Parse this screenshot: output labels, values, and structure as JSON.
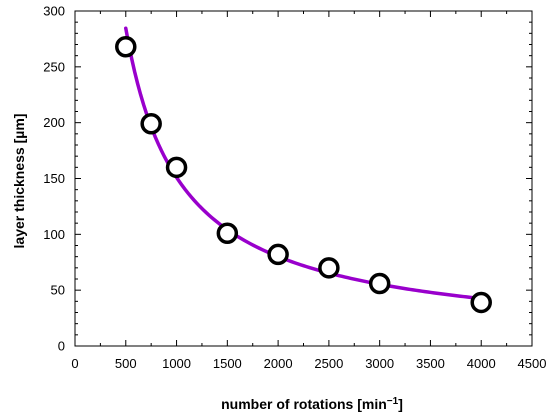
{
  "chart_data": {
    "type": "scatter",
    "title": "",
    "xlabel": "number of rotations [min",
    "xlabel_superscript": "−1",
    "xlabel_suffix": "]",
    "ylabel": "layer thickness [µm]",
    "xlim": [
      0,
      4500
    ],
    "ylim": [
      0,
      300
    ],
    "x_ticks": [
      0,
      500,
      1000,
      1500,
      2000,
      2500,
      3000,
      3500,
      4000,
      4500
    ],
    "y_ticks": [
      0,
      50,
      100,
      150,
      200,
      250,
      300
    ],
    "grid": false,
    "legend": "none",
    "series": [
      {
        "x": [
          500,
          750,
          1000,
          1500,
          2000,
          2500,
          3000,
          4000
        ],
        "y": [
          268,
          199,
          160,
          101,
          82,
          70,
          56,
          39
        ],
        "marker": "open-circle",
        "marker_color": "#000000",
        "fit_color": "#9900cc"
      }
    ]
  }
}
